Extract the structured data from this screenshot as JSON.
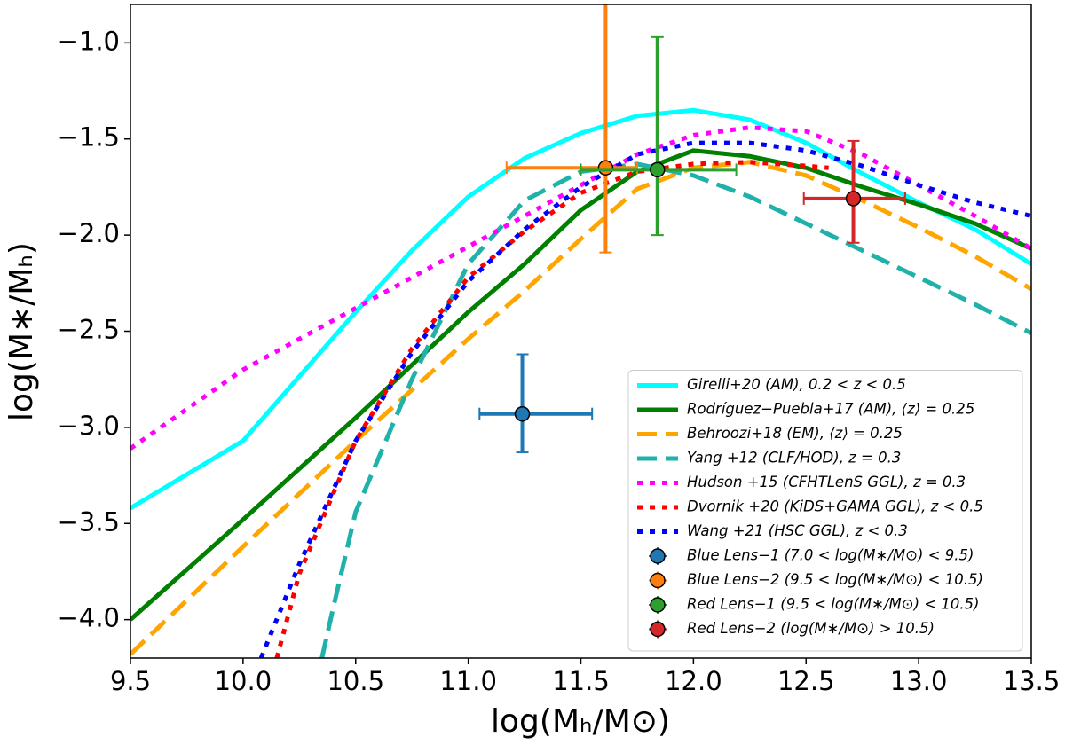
{
  "chart_data": {
    "type": "line",
    "xlabel": "log(Mₕ/M⊙)",
    "ylabel": "log(M∗/Mₕ)",
    "xlim": [
      9.5,
      13.5
    ],
    "ylim": [
      -4.2,
      -0.8
    ],
    "xticks": [
      9.5,
      {
        "value": 10,
        "label": "10.0"
      },
      10.5,
      {
        "value": 11,
        "label": "11.0"
      },
      11.5,
      {
        "value": 12,
        "label": "12.0"
      },
      12.5,
      {
        "value": 13,
        "label": "13.0"
      },
      13.5
    ],
    "yticks": [
      {
        "value": -4,
        "label": "−4.0"
      },
      {
        "value": -3.5,
        "label": "−3.5"
      },
      {
        "value": -3,
        "label": "−3.0"
      },
      {
        "value": -2.5,
        "label": "−2.5"
      },
      {
        "value": -2,
        "label": "−2.0"
      },
      {
        "value": -1.5,
        "label": "−1.5"
      },
      {
        "value": -1,
        "label": "−1.0"
      }
    ],
    "legend": "lower right",
    "series": [
      {
        "name": "Girelli+20 (AM), 0.2 < z < 0.5",
        "color": "#00ffff",
        "style": "solid",
        "x": [
          9.5,
          10,
          10.5,
          10.75,
          11,
          11.25,
          11.5,
          11.75,
          12,
          12.25,
          12.5,
          12.75,
          13,
          13.25,
          13.5
        ],
        "values": [
          -3.42,
          -3.07,
          -2.4,
          -2.08,
          -1.8,
          -1.6,
          -1.47,
          -1.38,
          -1.35,
          -1.4,
          -1.52,
          -1.68,
          -1.83,
          -1.97,
          -2.15
        ]
      },
      {
        "name": "Rodríguez−Puebla+17 (AM), ⟨z⟩ = 0.25",
        "color": "#008000",
        "style": "solid",
        "x": [
          9.5,
          10,
          10.5,
          11,
          11.25,
          11.5,
          11.75,
          12,
          12.25,
          12.5,
          12.75,
          13,
          13.25,
          13.5
        ],
        "values": [
          -4.0,
          -3.48,
          -2.95,
          -2.4,
          -2.15,
          -1.87,
          -1.67,
          -1.56,
          -1.59,
          -1.65,
          -1.75,
          -1.84,
          -1.94,
          -2.07
        ]
      },
      {
        "name": "Behroozi+18 (EM), ⟨z⟩ = 0.25",
        "color": "#ffa500",
        "style": "dashed",
        "x": [
          9.5,
          10,
          10.5,
          11,
          11.25,
          11.5,
          11.75,
          12,
          12.25,
          12.5,
          12.75,
          13,
          13.25,
          13.5
        ],
        "values": [
          -4.18,
          -3.62,
          -3.07,
          -2.54,
          -2.29,
          -2.02,
          -1.76,
          -1.65,
          -1.62,
          -1.69,
          -1.82,
          -1.96,
          -2.11,
          -2.28
        ]
      },
      {
        "name": "Yang +12 (CLF/HOD), z = 0.3",
        "color": "#20b2aa",
        "style": "dashed",
        "x": [
          10.35,
          10.4,
          10.5,
          10.75,
          11,
          11.25,
          11.5,
          11.75,
          12,
          12.25,
          12.5,
          12.75,
          13,
          13.25,
          13.5
        ],
        "values": [
          -4.2,
          -3.94,
          -3.44,
          -2.75,
          -2.15,
          -1.82,
          -1.67,
          -1.63,
          -1.69,
          -1.8,
          -1.94,
          -2.08,
          -2.22,
          -2.36,
          -2.51
        ]
      },
      {
        "name": "Hudson +15 (CFHTLenS GGL), z = 0.3",
        "color": "#ff00ff",
        "style": "dotted",
        "x": [
          9.5,
          10,
          10.5,
          11,
          11.5,
          11.75,
          12,
          12.25,
          12.5,
          12.75,
          13,
          13.25,
          13.5
        ],
        "values": [
          -3.11,
          -2.7,
          -2.38,
          -2.06,
          -1.74,
          -1.58,
          -1.48,
          -1.44,
          -1.46,
          -1.58,
          -1.74,
          -1.9,
          -2.07
        ]
      },
      {
        "name": "Dvornik +20 (KiDS+GAMA GGL), z < 0.5",
        "color": "#ff0000",
        "style": "dotted",
        "x": [
          10.15,
          10.25,
          10.5,
          10.75,
          11,
          11.25,
          11.5,
          11.75,
          12,
          12.25,
          12.5,
          12.6
        ],
        "values": [
          -4.2,
          -3.76,
          -3.07,
          -2.59,
          -2.22,
          -1.98,
          -1.78,
          -1.67,
          -1.63,
          -1.62,
          -1.64,
          -1.65
        ]
      },
      {
        "name": "Wang +21 (HSC GGL), z < 0.3",
        "color": "#0000ff",
        "style": "dotted",
        "x": [
          10.08,
          10.25,
          10.5,
          10.75,
          11,
          11.25,
          11.5,
          11.75,
          12,
          12.25,
          12.5,
          12.75,
          13,
          13.25,
          13.5
        ],
        "values": [
          -4.2,
          -3.71,
          -3.07,
          -2.61,
          -2.24,
          -1.97,
          -1.75,
          -1.58,
          -1.52,
          -1.52,
          -1.56,
          -1.64,
          -1.74,
          -1.83,
          -1.9
        ]
      }
    ],
    "points": [
      {
        "name": "Blue Lens−1 (7.0 < log(M∗/M⊙) < 9.5)",
        "color": "#1f77b4",
        "x": 11.24,
        "value": -2.93,
        "xlow": 11.05,
        "xhigh": 11.55,
        "ylow": -3.13,
        "yhigh": -2.62
      },
      {
        "name": "Blue Lens−2 (9.5 < log(M∗/M⊙) < 10.5)",
        "color": "#ff7f0e",
        "x": 11.61,
        "value": -1.65,
        "xlow": 11.17,
        "xhigh": 11.75,
        "ylow": -2.09,
        "yhigh": -0.6
      },
      {
        "name": "Red Lens−1 (9.5 < log(M∗/M⊙) < 10.5)",
        "color": "#2ca02c",
        "x": 11.84,
        "value": -1.66,
        "xlow": 11.5,
        "xhigh": 12.19,
        "ylow": -2.0,
        "yhigh": -0.97
      },
      {
        "name": "Red Lens−2 (log(M∗/M⊙) > 10.5)",
        "color": "#d62728",
        "x": 12.71,
        "value": -1.81,
        "xlow": 12.49,
        "xhigh": 12.94,
        "ylow": -2.04,
        "yhigh": -1.51
      }
    ]
  }
}
